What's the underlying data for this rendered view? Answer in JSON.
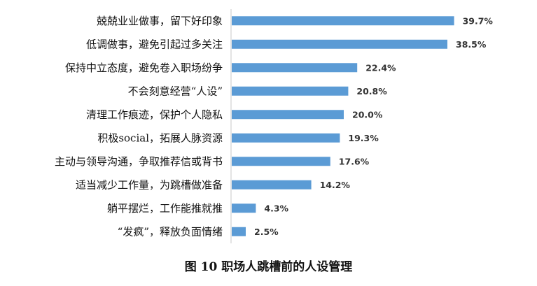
{
  "figure": {
    "caption": "图 10  职场人跳槽前的人设管理"
  },
  "chart_data": {
    "type": "bar",
    "orientation": "horizontal",
    "title": "",
    "xlabel": "",
    "ylabel": "",
    "xlim": [
      0,
      45
    ],
    "grid": false,
    "legend": "none",
    "bar_color": "#5B9BD5",
    "value_suffix": "%",
    "categories": [
      "兢兢业业做事，留下好印象",
      "低调做事，避免引起过多关注",
      "保持中立态度，避免卷入职场纷争",
      "不会刻意经营“人设”",
      "清理工作痕迹，保护个人隐私",
      "积极social，拓展人脉资源",
      "主动与领导沟通，争取推荐信或背书",
      "适当减少工作量，为跳槽做准备",
      "躺平摆烂，工作能推就推",
      "“发疯”，释放负面情绪"
    ],
    "values": [
      39.7,
      38.5,
      22.4,
      20.8,
      20.0,
      19.3,
      17.6,
      14.2,
      4.3,
      2.5
    ],
    "value_labels": [
      "39.7%",
      "38.5%",
      "22.4%",
      "20.8%",
      "20.0%",
      "19.3%",
      "17.6%",
      "14.2%",
      "4.3%",
      "2.5%"
    ]
  }
}
